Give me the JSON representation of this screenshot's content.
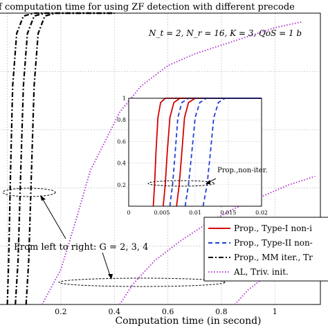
{
  "chart_data": {
    "type": "line",
    "title": "f computation time for using ZF detection with different precode",
    "params_text": "N_t = 2, N_r = 16, K = 3, QoS = 1 b",
    "xlabel": "Computation time (in second)",
    "ylabel": "",
    "xlim": [
      -0.03,
      1.17
    ],
    "ylim": [
      0,
      1
    ],
    "x_ticks": [
      "0.2",
      "0.4",
      "0.6",
      "0.8",
      "1"
    ],
    "grid": true,
    "legend_position": "bottom-right",
    "colors": {
      "red": "#d40000",
      "blue": "#1f3fd6",
      "black": "#000000",
      "purple": "#b03cd0"
    },
    "annotation_main": "From left to right: G = 2, 3, 4",
    "annotation_inset": "Prop.,non-iter.",
    "legend": [
      {
        "label": "Prop., Type-I non-i",
        "color": "#d40000",
        "dash": "solid"
      },
      {
        "label": "Prop., Type-II non-",
        "color": "#1f3fd6",
        "dash": "dashed"
      },
      {
        "label": "Prop., MM iter., Tr",
        "color": "#000000",
        "dash": "dashdot"
      },
      {
        "label": "AL, Triv. init.",
        "color": "#b03cd0",
        "dash": "dotted"
      }
    ],
    "series": [
      {
        "color": "#000000",
        "dash": "dashdot",
        "width": 2.2,
        "points": [
          [
            0.0,
            0.0
          ],
          [
            0.005,
            0.15
          ],
          [
            0.012,
            0.45
          ],
          [
            0.02,
            0.75
          ],
          [
            0.035,
            0.93
          ],
          [
            0.06,
            0.99
          ],
          [
            0.1,
            1.0
          ],
          [
            0.4,
            1.0
          ]
        ]
      },
      {
        "color": "#000000",
        "dash": "dashdot",
        "width": 2.2,
        "points": [
          [
            0.03,
            0.0
          ],
          [
            0.04,
            0.15
          ],
          [
            0.05,
            0.45
          ],
          [
            0.06,
            0.75
          ],
          [
            0.075,
            0.93
          ],
          [
            0.1,
            0.99
          ],
          [
            0.14,
            1.0
          ],
          [
            0.4,
            1.0
          ]
        ]
      },
      {
        "color": "#000000",
        "dash": "dashdot",
        "width": 2.2,
        "points": [
          [
            0.07,
            0.0
          ],
          [
            0.08,
            0.15
          ],
          [
            0.09,
            0.45
          ],
          [
            0.1,
            0.75
          ],
          [
            0.115,
            0.93
          ],
          [
            0.14,
            0.99
          ],
          [
            0.18,
            1.0
          ],
          [
            0.4,
            1.0
          ]
        ]
      },
      {
        "color": "#b03cd0",
        "dash": "dotted",
        "width": 2,
        "points": [
          [
            0.13,
            0.0
          ],
          [
            0.2,
            0.12
          ],
          [
            0.26,
            0.3
          ],
          [
            0.31,
            0.46
          ],
          [
            0.36,
            0.55
          ],
          [
            0.42,
            0.66
          ],
          [
            0.5,
            0.75
          ],
          [
            0.6,
            0.82
          ],
          [
            0.7,
            0.86
          ],
          [
            0.8,
            0.89
          ],
          [
            0.9,
            0.92
          ],
          [
            1.0,
            0.95
          ],
          [
            1.1,
            0.97
          ]
        ]
      },
      {
        "color": "#b03cd0",
        "dash": "dotted",
        "width": 2,
        "points": [
          [
            0.42,
            0.0
          ],
          [
            0.47,
            0.07
          ],
          [
            0.55,
            0.15
          ],
          [
            0.65,
            0.22
          ],
          [
            0.75,
            0.28
          ],
          [
            0.85,
            0.33
          ],
          [
            0.95,
            0.37
          ],
          [
            1.05,
            0.41
          ],
          [
            1.15,
            0.44
          ]
        ]
      },
      {
        "color": "#b03cd0",
        "dash": "dotted",
        "width": 2,
        "points": [
          [
            0.85,
            0.0
          ],
          [
            0.9,
            0.05
          ],
          [
            0.97,
            0.1
          ],
          [
            1.05,
            0.14
          ],
          [
            1.15,
            0.18
          ]
        ]
      }
    ],
    "inset": {
      "xlim": [
        0,
        0.02
      ],
      "ylim": [
        0,
        1
      ],
      "x_ticks": [
        "0",
        "0.005",
        "0.01",
        "0.015",
        "0.02"
      ],
      "y_ticks": [
        "0.2",
        "0.4",
        "0.6",
        "0.8",
        "1"
      ],
      "series": [
        {
          "color": "#d40000",
          "dash": "solid",
          "width": 1.8,
          "points": [
            [
              0.0037,
              0.0
            ],
            [
              0.0039,
              0.2
            ],
            [
              0.0041,
              0.5
            ],
            [
              0.0044,
              0.82
            ],
            [
              0.0048,
              0.96
            ],
            [
              0.0055,
              1.0
            ],
            [
              0.02,
              1.0
            ]
          ]
        },
        {
          "color": "#d40000",
          "dash": "solid",
          "width": 1.8,
          "points": [
            [
              0.0052,
              0.0
            ],
            [
              0.0055,
              0.2
            ],
            [
              0.0058,
              0.5
            ],
            [
              0.0062,
              0.82
            ],
            [
              0.0068,
              0.96
            ],
            [
              0.0077,
              1.0
            ],
            [
              0.02,
              1.0
            ]
          ]
        },
        {
          "color": "#d40000",
          "dash": "solid",
          "width": 1.8,
          "points": [
            [
              0.0072,
              0.0
            ],
            [
              0.0076,
              0.2
            ],
            [
              0.008,
              0.5
            ],
            [
              0.0084,
              0.82
            ],
            [
              0.009,
              0.96
            ],
            [
              0.01,
              1.0
            ],
            [
              0.02,
              1.0
            ]
          ]
        },
        {
          "color": "#1f3fd6",
          "dash": "dashed",
          "width": 1.8,
          "points": [
            [
              0.0062,
              0.0
            ],
            [
              0.0066,
              0.2
            ],
            [
              0.007,
              0.5
            ],
            [
              0.0074,
              0.82
            ],
            [
              0.008,
              0.96
            ],
            [
              0.009,
              1.0
            ],
            [
              0.02,
              1.0
            ]
          ]
        },
        {
          "color": "#1f3fd6",
          "dash": "dashed",
          "width": 1.8,
          "points": [
            [
              0.0085,
              0.0
            ],
            [
              0.009,
              0.2
            ],
            [
              0.0095,
              0.5
            ],
            [
              0.01,
              0.82
            ],
            [
              0.0107,
              0.96
            ],
            [
              0.0117,
              1.0
            ],
            [
              0.02,
              1.0
            ]
          ]
        },
        {
          "color": "#1f3fd6",
          "dash": "dashed",
          "width": 1.8,
          "points": [
            [
              0.0112,
              0.0
            ],
            [
              0.0118,
              0.2
            ],
            [
              0.0123,
              0.5
            ],
            [
              0.0128,
              0.82
            ],
            [
              0.0135,
              0.96
            ],
            [
              0.0145,
              1.0
            ],
            [
              0.02,
              1.0
            ]
          ]
        }
      ]
    }
  }
}
